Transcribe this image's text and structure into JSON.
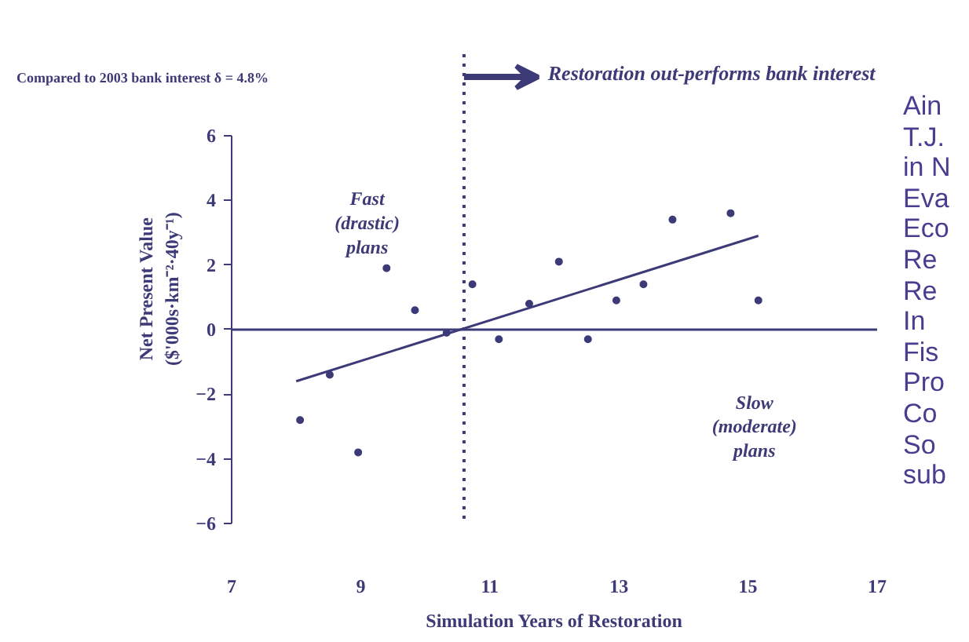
{
  "chart_data": {
    "type": "scatter",
    "title": "Restoration out-performs bank interest",
    "subtitle": "Compared to 2003 bank interest δ = 4.8%",
    "xlabel": "Simulation Years of Restoration",
    "ylabel": "Net Present Value\n($'000s·km⁻²·40y⁻¹)",
    "xlim": [
      7,
      17
    ],
    "ylim": [
      -6,
      6
    ],
    "xticks": [
      7,
      9,
      11,
      13,
      15,
      17
    ],
    "yticks": [
      -6,
      -4,
      -2,
      0,
      2,
      4,
      6
    ],
    "grid": false,
    "series": [
      {
        "marker": "circle",
        "color": "#3d3a78",
        "x": [
          8.06,
          8.52,
          8.96,
          9.4,
          9.84,
          10.33,
          10.73,
          11.14,
          11.61,
          12.07,
          12.52,
          12.96,
          13.38,
          13.83,
          14.73,
          15.16
        ],
        "values": [
          -2.8,
          -1.4,
          -3.8,
          1.9,
          0.6,
          -0.1,
          1.4,
          -0.3,
          0.8,
          2.1,
          -0.3,
          0.9,
          1.4,
          3.4,
          3.6,
          0.9
        ]
      },
      {
        "type": "line",
        "color": "#3d3a78",
        "x": [
          8.0,
          15.16
        ],
        "values": [
          -1.6,
          2.9
        ]
      }
    ],
    "ref_lines": [
      {
        "axis": "x",
        "value": 10.6,
        "color": "#3d3a78",
        "line_style": "dotted"
      },
      {
        "axis": "y",
        "value": 0,
        "color": "#3d3a78",
        "line_style": "solid"
      }
    ],
    "annotations": [
      "Fast\n(drastic)\nplans",
      "Slow\n(moderate)\nplans",
      "Ain\nT.J.\nin N\nEva\nEco\nRe\nRe\nIn\nFis\nPro\nCo\nSo\nsub"
    ]
  }
}
